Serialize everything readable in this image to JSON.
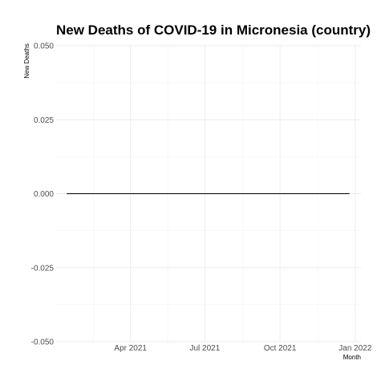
{
  "chart_data": {
    "type": "line",
    "title": "New Deaths of COVID-19 in Micronesia (country)",
    "xlabel": "Month",
    "ylabel": "New Deaths",
    "x_start": "2021-01-13",
    "x_end": "2021-12-25",
    "xlim": [
      "2020-12-31",
      "2022-01-08"
    ],
    "ylim": [
      -0.05,
      0.05
    ],
    "y_ticks": [
      -0.05,
      -0.025,
      0,
      0.025,
      0.05
    ],
    "y_tick_labels": [
      "-0.050",
      "-0.025",
      "0.000",
      "0.025",
      "0.050"
    ],
    "x_ticks": [
      "2021-04-01",
      "2021-07-01",
      "2021-10-01",
      "2022-01-01"
    ],
    "x_tick_labels": [
      "Apr 2021",
      "Jul 2021",
      "Oct 2021",
      "Jan 2022"
    ],
    "series": [
      {
        "values_constant": 0,
        "color": "#000000"
      }
    ],
    "grid": true,
    "legend": "none"
  }
}
